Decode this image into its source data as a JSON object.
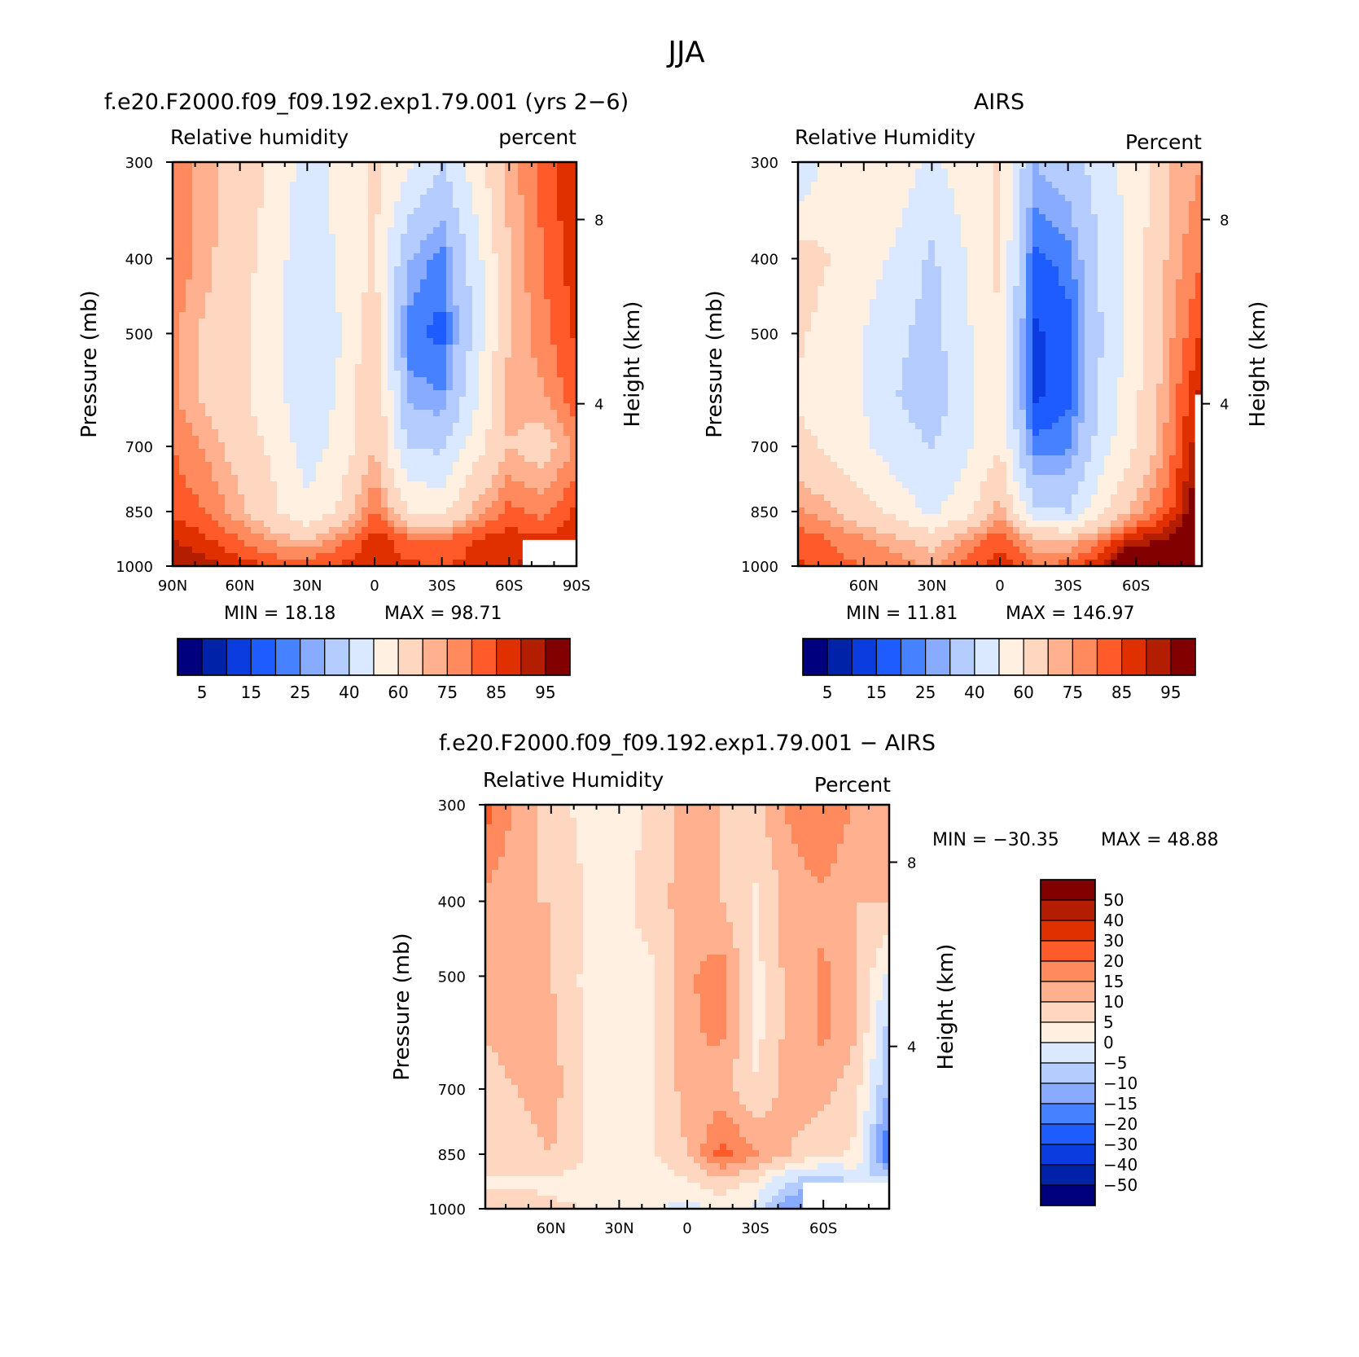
{
  "figure": {
    "title": "JJA"
  },
  "colors": {
    "rh_levels": [
      "#00007f",
      "#0022a8",
      "#0a3ce0",
      "#1e5cff",
      "#4682ff",
      "#88aaff",
      "#b4ccff",
      "#dae9ff",
      "#fff0e2",
      "#ffd6c0",
      "#ffb08e",
      "#ff8a5e",
      "#ff5a2a",
      "#e03000",
      "#b41e00",
      "#820000"
    ],
    "diff_levels": [
      "#00007f",
      "#0022a8",
      "#0a3ce0",
      "#1e5cff",
      "#4682ff",
      "#88aaff",
      "#b4ccff",
      "#dae9ff",
      "#fff0e2",
      "#ffd6c0",
      "#ffb08e",
      "#ff8a5e",
      "#ff5a2a",
      "#e03000",
      "#b41e00",
      "#820000"
    ],
    "missing": "#ffffff"
  },
  "chart_data": [
    {
      "type": "heatmap",
      "id": "model",
      "title": "f.e20.F2000.f09_f09.192.exp1.79.001 (yrs 2−6)",
      "left_label": "Relative humidity",
      "right_label": "percent",
      "xlabel": "",
      "ylabel": "Pressure (mb)",
      "y2label": "Height (km)",
      "x_ticks": [
        "90N",
        "60N",
        "30N",
        "0",
        "30S",
        "60S",
        "90S"
      ],
      "x_tick_vals": [
        90,
        60,
        30,
        0,
        -30,
        -60,
        -90
      ],
      "xlim": [
        90,
        -90
      ],
      "y_ticks": [
        "300",
        "400",
        "500",
        "700",
        "850",
        "1000"
      ],
      "y_tick_vals": [
        300,
        400,
        500,
        700,
        850,
        1000
      ],
      "ylim": [
        1000,
        300
      ],
      "y2_ticks": [
        "8",
        "4"
      ],
      "y2_tick_vals": [
        8,
        4
      ],
      "min_text": "MIN =   18.18",
      "max_text": "MAX =   98.71",
      "min": 18.18,
      "max": 98.71,
      "levels": [
        0,
        5,
        10,
        15,
        20,
        25,
        30,
        40,
        50,
        60,
        70,
        75,
        80,
        85,
        90,
        95,
        100
      ],
      "colorbar_labels": [
        "5",
        "15",
        "25",
        "40",
        "60",
        "75",
        "85",
        "95"
      ],
      "x": [
        90,
        75,
        60,
        45,
        30,
        15,
        0,
        -15,
        -30,
        -45,
        -60,
        -75,
        -90
      ],
      "y": [
        300,
        400,
        500,
        600,
        700,
        850,
        925,
        1000
      ],
      "z": [
        [
          78,
          72,
          66,
          58,
          45,
          54,
          62,
          52,
          40,
          55,
          72,
          82,
          90
        ],
        [
          80,
          72,
          64,
          55,
          42,
          52,
          62,
          30,
          22,
          45,
          70,
          80,
          88
        ],
        [
          76,
          68,
          62,
          54,
          40,
          50,
          66,
          22,
          18,
          44,
          70,
          78,
          86
        ],
        [
          76,
          68,
          62,
          54,
          42,
          52,
          72,
          28,
          25,
          48,
          72,
          74,
          84
        ],
        [
          80,
          74,
          66,
          58,
          45,
          54,
          70,
          40,
          38,
          56,
          70,
          66,
          76
        ],
        [
          84,
          80,
          72,
          62,
          52,
          62,
          82,
          60,
          58,
          72,
          82,
          78,
          86
        ],
        [
          90,
          86,
          80,
          74,
          70,
          78,
          88,
          82,
          80,
          86,
          88,
          86,
          88
        ],
        [
          96,
          92,
          88,
          84,
          84,
          86,
          88,
          86,
          85,
          86,
          90,
          92,
          90
        ]
      ],
      "missing_box": {
        "lat_from": -66,
        "lat_to": -90,
        "p_from": 925,
        "p_to": 1000
      }
    },
    {
      "type": "heatmap",
      "id": "obs",
      "title": "AIRS",
      "left_label": "Relative Humidity",
      "right_label": "Percent",
      "xlabel": "",
      "ylabel": "Pressure (mb)",
      "y2label": "Height (km)",
      "x_ticks": [
        "60N",
        "30N",
        "0",
        "30S",
        "60S"
      ],
      "x_tick_vals": [
        60,
        30,
        0,
        -30,
        -60
      ],
      "xlim": [
        89,
        -89
      ],
      "y_ticks": [
        "300",
        "400",
        "500",
        "700",
        "850",
        "1000"
      ],
      "y_tick_vals": [
        300,
        400,
        500,
        700,
        850,
        1000
      ],
      "ylim": [
        1000,
        300
      ],
      "y2_ticks": [
        "8",
        "4"
      ],
      "y2_tick_vals": [
        8,
        4
      ],
      "min_text": "MIN =   11.81",
      "max_text": "MAX =  146.97",
      "min": 11.81,
      "max": 146.97,
      "levels": [
        0,
        5,
        10,
        15,
        20,
        25,
        30,
        40,
        50,
        60,
        70,
        75,
        80,
        85,
        90,
        95,
        100
      ],
      "colorbar_labels": [
        "5",
        "15",
        "25",
        "40",
        "60",
        "75",
        "85",
        "95"
      ],
      "x": [
        89,
        75,
        60,
        45,
        30,
        15,
        0,
        -15,
        -30,
        -45,
        -60,
        -75,
        -89
      ],
      "y": [
        300,
        400,
        500,
        600,
        700,
        850,
        925,
        1000
      ],
      "z": [
        [
          40,
          55,
          58,
          55,
          48,
          55,
          62,
          30,
          35,
          45,
          55,
          70,
          75
        ],
        [
          66,
          60,
          54,
          48,
          38,
          50,
          62,
          18,
          22,
          42,
          55,
          72,
          80
        ],
        [
          62,
          55,
          50,
          42,
          36,
          48,
          60,
          14,
          18,
          40,
          56,
          74,
          86
        ],
        [
          58,
          54,
          50,
          40,
          34,
          46,
          58,
          14,
          18,
          42,
          58,
          76,
          92
        ],
        [
          64,
          58,
          52,
          44,
          40,
          48,
          60,
          22,
          24,
          46,
          60,
          78,
          96
        ],
        [
          76,
          72,
          64,
          56,
          48,
          56,
          74,
          42,
          40,
          58,
          74,
          84,
          104
        ],
        [
          84,
          80,
          76,
          72,
          66,
          76,
          84,
          72,
          70,
          80,
          90,
          96,
          110
        ],
        [
          86,
          82,
          80,
          78,
          74,
          82,
          88,
          80,
          82,
          90,
          120,
          100,
          110
        ]
      ],
      "missing_box": {
        "lat_from": -86,
        "lat_to": -89,
        "p_from": 600,
        "p_to": 1000
      }
    },
    {
      "type": "heatmap",
      "id": "diff",
      "title": "f.e20.F2000.f09_f09.192.exp1.79.001 − AIRS",
      "left_label": "Relative Humidity",
      "right_label": "Percent",
      "xlabel": "",
      "ylabel": "Pressure (mb)",
      "y2label": "Height (km)",
      "x_ticks": [
        "60N",
        "30N",
        "0",
        "30S",
        "60S"
      ],
      "x_tick_vals": [
        60,
        30,
        0,
        -30,
        -60
      ],
      "xlim": [
        89,
        -89
      ],
      "y_ticks": [
        "300",
        "400",
        "500",
        "700",
        "850",
        "1000"
      ],
      "y_tick_vals": [
        300,
        400,
        500,
        700,
        850,
        1000
      ],
      "ylim": [
        1000,
        300
      ],
      "y2_ticks": [
        "8",
        "4"
      ],
      "y2_tick_vals": [
        8,
        4
      ],
      "min_text": "MIN = −30.35",
      "max_text": "MAX =   48.88",
      "min": -30.35,
      "max": 48.88,
      "levels": [
        -60,
        -50,
        -40,
        -30,
        -20,
        -15,
        -10,
        -5,
        0,
        5,
        10,
        15,
        20,
        30,
        40,
        50,
        60
      ],
      "colorbar_labels": [
        "50",
        "40",
        "30",
        "20",
        "15",
        "10",
        "5",
        "0",
        "−5",
        "−10",
        "−15",
        "−20",
        "−30",
        "−40",
        "−50"
      ],
      "x": [
        89,
        75,
        60,
        45,
        30,
        15,
        0,
        -15,
        -30,
        -45,
        -60,
        -75,
        -89
      ],
      "y": [
        300,
        400,
        500,
        600,
        700,
        850,
        925,
        1000
      ],
      "z": [
        [
          22,
          14,
          8,
          3,
          1,
          7,
          12,
          10,
          8,
          16,
          20,
          14,
          12
        ],
        [
          14,
          10,
          10,
          5,
          3,
          8,
          12,
          10,
          4,
          12,
          14,
          10,
          10
        ],
        [
          12,
          10,
          10,
          4,
          2,
          4,
          14,
          18,
          3,
          12,
          16,
          10,
          -2
        ],
        [
          10,
          12,
          12,
          4,
          2,
          4,
          14,
          16,
          3,
          12,
          16,
          10,
          -8
        ],
        [
          8,
          10,
          12,
          5,
          2,
          5,
          12,
          12,
          6,
          12,
          12,
          6,
          -10
        ],
        [
          8,
          8,
          10,
          5,
          1,
          5,
          10,
          22,
          16,
          10,
          6,
          4,
          -22
        ],
        [
          4,
          4,
          4,
          2,
          1,
          1,
          4,
          8,
          4,
          -6,
          -10,
          -4,
          -2
        ],
        [
          10,
          8,
          6,
          5,
          4,
          1,
          -2,
          2,
          -1,
          -14,
          -16,
          -6,
          -2
        ]
      ],
      "missing_box": {
        "lat_from": -51,
        "lat_to": -89,
        "p_from": 925,
        "p_to": 1000
      }
    }
  ]
}
